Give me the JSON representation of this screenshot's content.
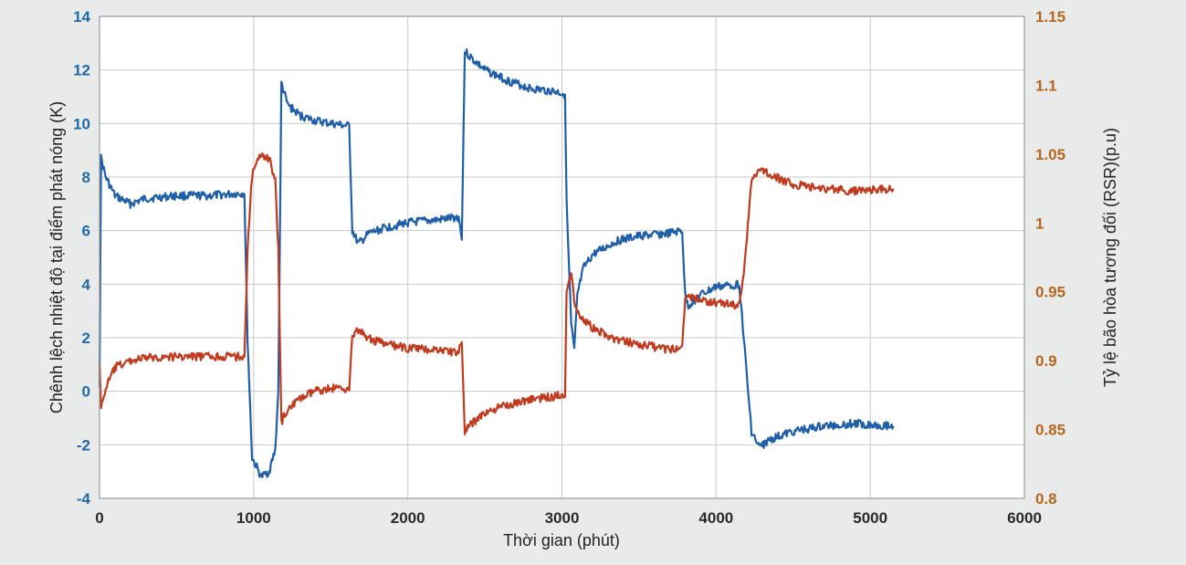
{
  "chart_data": {
    "type": "line",
    "title": "",
    "xlabel": "Thời gian (phút)",
    "ylabel_left": "Chênh lệch nhiệt độ tại điểm phát nóng (K)",
    "ylabel_right": "Tỷ lệ bão hòa tương đối (RSR)(p.u)",
    "xlim": [
      0,
      6000
    ],
    "ylim_left": [
      -4,
      14
    ],
    "ylim_right": [
      0.8,
      1.15
    ],
    "x_ticks": [
      "0",
      "1000",
      "2000",
      "3000",
      "4000",
      "5000",
      "6000"
    ],
    "y_ticks_left": [
      "-4",
      "-2",
      "0",
      "2",
      "4",
      "6",
      "8",
      "10",
      "12",
      "14"
    ],
    "y_ticks_right": [
      "0.8",
      "0.85",
      "0.9",
      "0.95",
      "1",
      "1.05",
      "1.1",
      "1.15"
    ],
    "grid": true,
    "legend": "none",
    "colors": {
      "left_series": "#1f5ea8",
      "right_series": "#c23a1e",
      "left_axis": "#1f6aa6",
      "right_axis": "#b8651c"
    },
    "series": [
      {
        "axis": "left",
        "x": [
          0,
          10,
          40,
          100,
          200,
          300,
          500,
          700,
          940,
          960,
          990,
          1050,
          1100,
          1140,
          1160,
          1180,
          1220,
          1300,
          1400,
          1500,
          1620,
          1640,
          1680,
          1750,
          1850,
          2000,
          2200,
          2330,
          2350,
          2370,
          2420,
          2500,
          2650,
          2800,
          2950,
          3020,
          3030,
          3060,
          3080,
          3100,
          3140,
          3200,
          3350,
          3500,
          3700,
          3780,
          3800,
          3820,
          3900,
          4000,
          4150,
          4180,
          4200,
          4230,
          4280,
          4350,
          4500,
          4700,
          4900,
          5150
        ],
        "y": [
          0.2,
          8.7,
          8.0,
          7.3,
          7.0,
          7.2,
          7.3,
          7.3,
          7.4,
          2.0,
          -2.5,
          -3.2,
          -3.0,
          -2.2,
          0.0,
          11.5,
          10.7,
          10.3,
          10.1,
          10.0,
          9.9,
          6.0,
          5.5,
          5.9,
          6.1,
          6.3,
          6.4,
          6.5,
          5.7,
          12.7,
          12.4,
          12.0,
          11.6,
          11.3,
          11.2,
          11.1,
          7.0,
          2.5,
          1.5,
          3.6,
          4.6,
          5.1,
          5.6,
          5.8,
          5.9,
          6.0,
          3.5,
          3.2,
          3.6,
          3.9,
          4.0,
          2.0,
          0.5,
          -1.5,
          -2.1,
          -1.8,
          -1.5,
          -1.3,
          -1.2,
          -1.3
        ]
      },
      {
        "axis": "right",
        "x": [
          0,
          10,
          40,
          100,
          200,
          300,
          500,
          700,
          940,
          960,
          990,
          1050,
          1100,
          1140,
          1160,
          1180,
          1220,
          1300,
          1400,
          1500,
          1620,
          1640,
          1680,
          1750,
          1850,
          2000,
          2200,
          2330,
          2350,
          2370,
          2420,
          2500,
          2650,
          2800,
          2950,
          3020,
          3030,
          3060,
          3080,
          3100,
          3140,
          3200,
          3350,
          3500,
          3700,
          3780,
          3800,
          3820,
          3900,
          4000,
          4150,
          4180,
          4200,
          4230,
          4280,
          4350,
          4500,
          4700,
          4900,
          5150
        ],
        "y": [
          0.9,
          0.865,
          0.88,
          0.895,
          0.9,
          0.902,
          0.903,
          0.903,
          0.903,
          0.98,
          1.035,
          1.05,
          1.047,
          1.03,
          0.98,
          0.855,
          0.865,
          0.872,
          0.878,
          0.88,
          0.88,
          0.918,
          0.922,
          0.916,
          0.912,
          0.909,
          0.908,
          0.906,
          0.915,
          0.848,
          0.855,
          0.862,
          0.868,
          0.872,
          0.874,
          0.876,
          0.95,
          0.965,
          0.945,
          0.935,
          0.93,
          0.924,
          0.915,
          0.912,
          0.908,
          0.91,
          0.948,
          0.947,
          0.944,
          0.942,
          0.94,
          0.965,
          0.99,
          1.03,
          1.04,
          1.035,
          1.028,
          1.025,
          1.023,
          1.025
        ]
      }
    ]
  }
}
